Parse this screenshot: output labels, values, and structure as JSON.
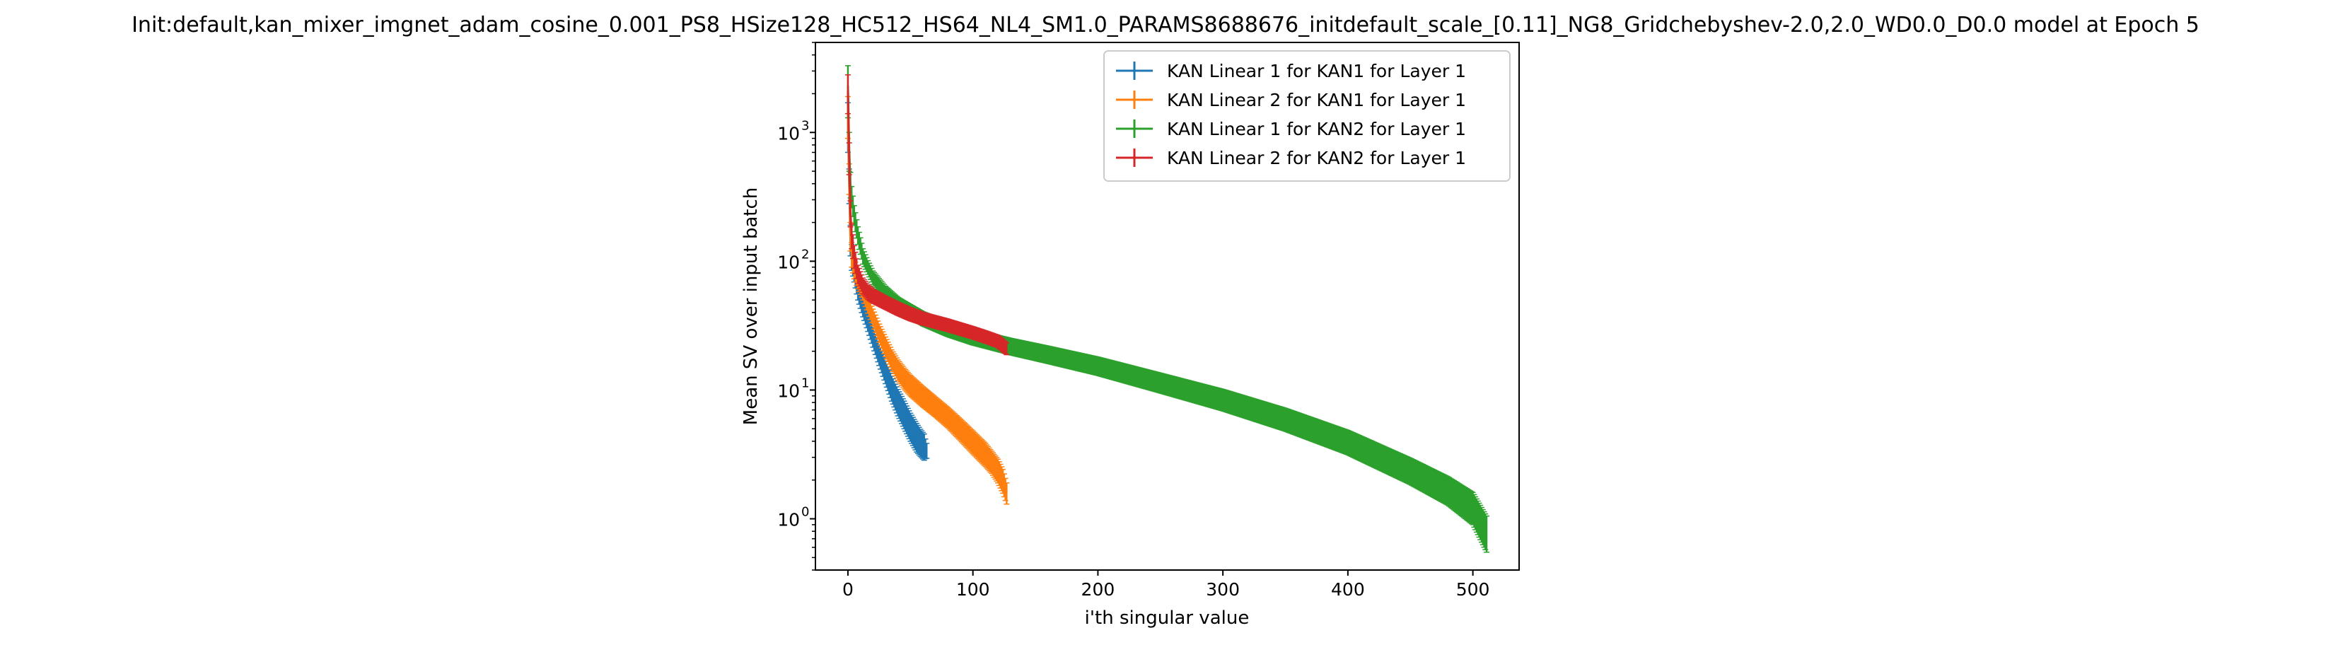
{
  "chart_data": {
    "type": "line",
    "title": "Init:default,kan_mixer_imgnet_adam_cosine_0.001_PS8_HSize128_HC512_HS64_NL4_SM1.0_PARAMS8688676_initdefault_scale_[0.11]_NG8_Gridchebyshev-2.0,2.0_WD0.0_D0.0 model at Epoch 5",
    "xlabel": "i'th singular value",
    "ylabel": "Mean SV over input batch",
    "x_scale": "linear",
    "y_scale": "log",
    "xlim": [
      -26,
      537
    ],
    "ylim": [
      0.4,
      5000
    ],
    "x_ticks": [
      0,
      100,
      200,
      300,
      400,
      500
    ],
    "x_tick_labels": [
      "0",
      "100",
      "200",
      "300",
      "400",
      "500"
    ],
    "y_ticks": [
      1,
      10,
      100,
      1000
    ],
    "y_tick_labels": [
      "10",
      "10",
      "10",
      "10"
    ],
    "y_tick_exponents": [
      "0",
      "1",
      "2",
      "3"
    ],
    "grid": false,
    "legend_position": "top-right",
    "error_bars": true,
    "series": [
      {
        "name": "KAN Linear 1 for KAN1 for Layer 1",
        "color": "#1f77b4",
        "x": [
          0,
          1,
          2,
          3,
          5,
          8,
          12,
          16,
          20,
          25,
          30,
          35,
          40,
          45,
          50,
          55,
          58,
          61,
          63
        ],
        "y": [
          1200,
          400,
          150,
          110,
          85,
          60,
          44,
          34,
          26,
          19,
          14,
          10.5,
          8.2,
          6.6,
          5.3,
          4.4,
          4.0,
          3.7,
          3.4
        ],
        "err": [
          500,
          120,
          40,
          25,
          16,
          10,
          7,
          5.5,
          4.5,
          3.5,
          2.8,
          2.3,
          1.9,
          1.6,
          1.3,
          1.1,
          0.95,
          0.85,
          0.45
        ]
      },
      {
        "name": "KAN Linear 2 for KAN1 for Layer 1",
        "color": "#ff7f0e",
        "x": [
          0,
          1,
          2,
          3,
          5,
          8,
          12,
          16,
          20,
          25,
          30,
          35,
          40,
          45,
          50,
          60,
          70,
          80,
          90,
          100,
          110,
          115,
          120,
          124,
          127
        ],
        "y": [
          1400,
          450,
          160,
          115,
          90,
          72,
          58,
          46,
          37,
          28,
          22,
          17.5,
          14.5,
          12.5,
          11,
          9,
          7.5,
          6.2,
          5.0,
          4.0,
          3.2,
          2.8,
          2.4,
          2.0,
          1.6
        ],
        "err": [
          500,
          120,
          40,
          25,
          17,
          11,
          8,
          6.5,
          5.5,
          4.5,
          3.8,
          3.0,
          2.6,
          2.3,
          2.0,
          1.6,
          1.3,
          1.1,
          0.95,
          0.8,
          0.65,
          0.55,
          0.5,
          0.42,
          0.3
        ]
      },
      {
        "name": "KAN Linear 1 for KAN2 for Layer 1",
        "color": "#2ca02c",
        "x": [
          0,
          1,
          2,
          3,
          5,
          8,
          12,
          16,
          20,
          30,
          40,
          50,
          60,
          80,
          100,
          130,
          160,
          200,
          250,
          300,
          350,
          400,
          450,
          480,
          500,
          511
        ],
        "y": [
          2300,
          750,
          400,
          320,
          230,
          160,
          110,
          90,
          75,
          57,
          47,
          41,
          36,
          30,
          26,
          22,
          19,
          15.5,
          11.5,
          8.5,
          6.0,
          4.0,
          2.4,
          1.7,
          1.25,
          0.8
        ],
        "err": [
          1000,
          250,
          90,
          60,
          40,
          25,
          15,
          11,
          9,
          7,
          5.5,
          5,
          4.5,
          4,
          3.6,
          3.2,
          2.9,
          2.5,
          2.0,
          1.6,
          1.2,
          0.85,
          0.55,
          0.42,
          0.35,
          0.25
        ]
      },
      {
        "name": "KAN Linear 2 for KAN2 for Layer 1",
        "color": "#d62728",
        "x": [
          0,
          1,
          2,
          3,
          5,
          8,
          12,
          16,
          20,
          30,
          40,
          50,
          60,
          80,
          100,
          110,
          120,
          127
        ],
        "y": [
          2100,
          650,
          240,
          160,
          110,
          80,
          65,
          58,
          54,
          48,
          43,
          39,
          36,
          32,
          28,
          26,
          24,
          21
        ],
        "err": [
          700,
          180,
          55,
          35,
          22,
          13,
          9,
          7.5,
          6.5,
          5.5,
          5,
          4.5,
          4,
          3.5,
          3,
          2.8,
          2.6,
          2.2
        ]
      }
    ]
  }
}
